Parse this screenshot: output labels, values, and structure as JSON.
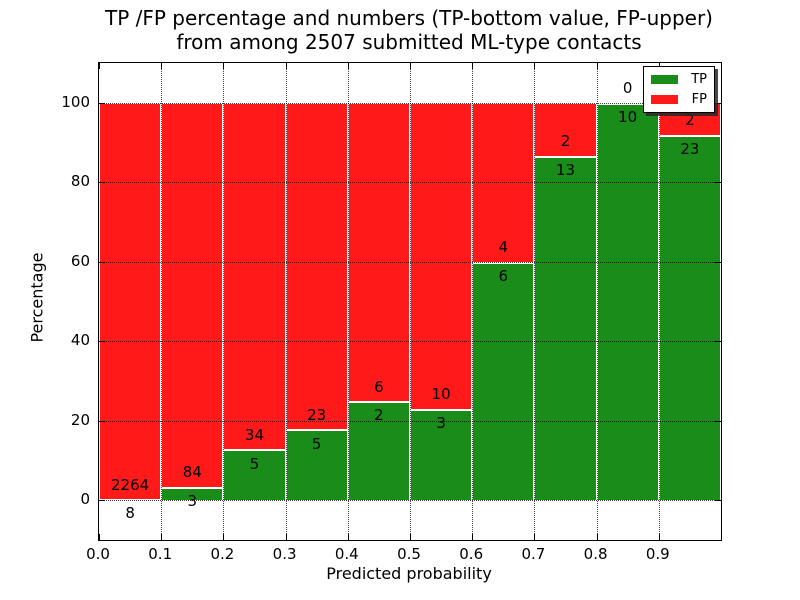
{
  "figure": {
    "background": "#ffffff"
  },
  "chart_data": {
    "type": "bar",
    "stacked": true,
    "title_line1": "TP /FP percentage and numbers (TP-bottom value, FP-upper)",
    "title_line2": "from among 2507 submitted ML-type contacts",
    "xlabel": "Predicted probability",
    "ylabel": "Percentage",
    "grid": true,
    "grid_style": "dotted",
    "legend_position": "upper right",
    "xlim": [
      0.0,
      1.0
    ],
    "ylim": [
      -10,
      110
    ],
    "x_tick_values": [
      0.0,
      0.1,
      0.2,
      0.3,
      0.4,
      0.5,
      0.6,
      0.7,
      0.8,
      0.9
    ],
    "x_tick_labels": [
      "0.0",
      "0.1",
      "0.2",
      "0.3",
      "0.4",
      "0.5",
      "0.6",
      "0.7",
      "0.8",
      "0.9"
    ],
    "y_tick_values": [
      0,
      20,
      40,
      60,
      80,
      100
    ],
    "y_tick_labels": [
      "0",
      "20",
      "40",
      "60",
      "80",
      "100"
    ],
    "categories": [
      "0.0-0.1",
      "0.1-0.2",
      "0.2-0.3",
      "0.3-0.4",
      "0.4-0.5",
      "0.5-0.6",
      "0.6-0.7",
      "0.7-0.8",
      "0.8-0.9",
      "0.9-1.0"
    ],
    "series": [
      {
        "name": "TP",
        "color": "#198c19",
        "counts": [
          8,
          3,
          5,
          5,
          2,
          3,
          6,
          13,
          10,
          23
        ],
        "pct": [
          0.35,
          3.45,
          12.82,
          17.86,
          25.0,
          23.08,
          60.0,
          86.67,
          100.0,
          92.0
        ]
      },
      {
        "name": "FP",
        "color": "#ff1919",
        "counts": [
          2264,
          84,
          34,
          23,
          6,
          10,
          4,
          2,
          0,
          2
        ],
        "pct": [
          99.65,
          96.55,
          87.18,
          82.14,
          75.0,
          76.92,
          40.0,
          13.33,
          0.0,
          8.0
        ]
      }
    ],
    "annotation_note": "each bar annotated with raw counts: TP count below boundary, FP count above boundary",
    "total_submitted": 2507
  }
}
